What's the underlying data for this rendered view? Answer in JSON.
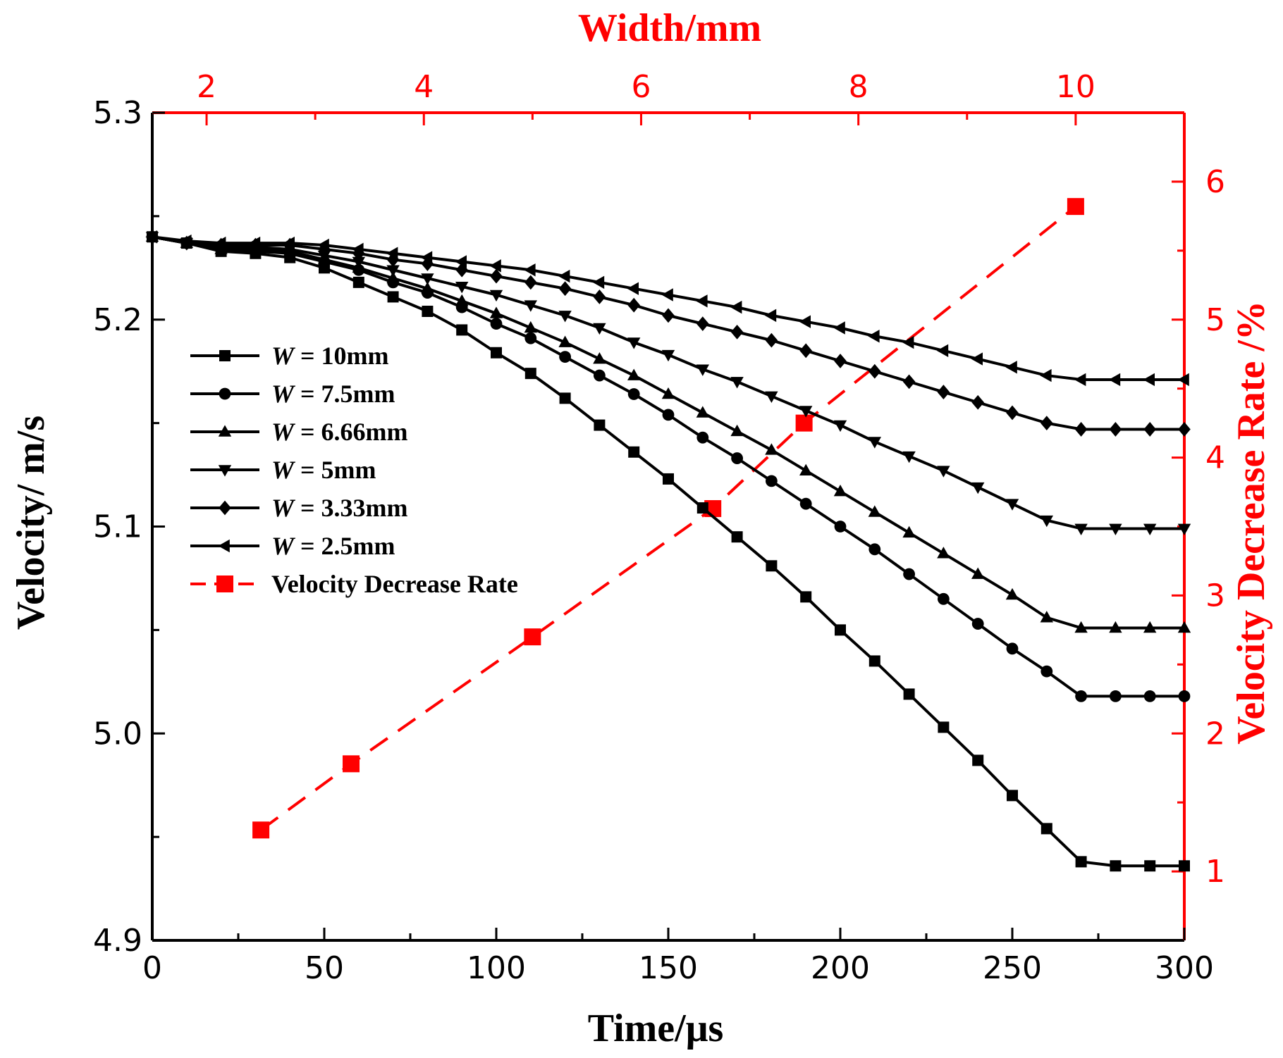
{
  "chart_data": {
    "type": "line",
    "xlabel": "Time/μs",
    "ylabel": "Velocity/ m/s",
    "x2label": "Width/mm",
    "y2label": "Velocity Decrease Rate /%",
    "xlim": [
      0,
      300
    ],
    "ylim": [
      4.9,
      5.3
    ],
    "x2lim": [
      1.5,
      11.0
    ],
    "y2lim": [
      0.5,
      6.5
    ],
    "xticks": [
      "0",
      "50",
      "100",
      "150",
      "200",
      "250",
      "300"
    ],
    "yticks": [
      "4.9",
      "5.0",
      "5.1",
      "5.2",
      "5.3"
    ],
    "x2ticks": [
      "2",
      "4",
      "6",
      "8",
      "10"
    ],
    "y2ticks": [
      "1",
      "2",
      "3",
      "4",
      "5",
      "6"
    ],
    "x": [
      0,
      10,
      20,
      30,
      40,
      50,
      60,
      70,
      80,
      90,
      100,
      110,
      120,
      130,
      140,
      150,
      160,
      170,
      180,
      190,
      200,
      210,
      220,
      230,
      240,
      250,
      260,
      270,
      280,
      290,
      300
    ],
    "series": [
      {
        "name": "W = 10mm",
        "prefix": "W",
        "suffix": " = 10mm",
        "marker": "square",
        "values": [
          5.24,
          5.237,
          5.233,
          5.232,
          5.23,
          5.225,
          5.218,
          5.211,
          5.204,
          5.195,
          5.184,
          5.174,
          5.162,
          5.149,
          5.136,
          5.123,
          5.109,
          5.095,
          5.081,
          5.066,
          5.05,
          5.035,
          5.019,
          5.003,
          4.987,
          4.97,
          4.954,
          4.938,
          4.936,
          4.936,
          4.936
        ]
      },
      {
        "name": "W = 7.5mm",
        "prefix": "W",
        "suffix": " = 7.5mm",
        "marker": "circle",
        "values": [
          5.24,
          5.237,
          5.234,
          5.233,
          5.232,
          5.228,
          5.224,
          5.218,
          5.213,
          5.206,
          5.198,
          5.191,
          5.182,
          5.173,
          5.164,
          5.154,
          5.143,
          5.133,
          5.122,
          5.111,
          5.1,
          5.089,
          5.077,
          5.065,
          5.053,
          5.041,
          5.03,
          5.018,
          5.018,
          5.018,
          5.018
        ]
      },
      {
        "name": "W = 6.66mm",
        "prefix": "W",
        "suffix": " = 6.66mm",
        "marker": "triangle-up",
        "values": [
          5.24,
          5.237,
          5.234,
          5.234,
          5.233,
          5.229,
          5.225,
          5.22,
          5.215,
          5.209,
          5.203,
          5.196,
          5.189,
          5.181,
          5.173,
          5.164,
          5.155,
          5.146,
          5.137,
          5.127,
          5.117,
          5.107,
          5.097,
          5.087,
          5.077,
          5.067,
          5.056,
          5.051,
          5.051,
          5.051,
          5.051
        ]
      },
      {
        "name": "W = 5mm",
        "prefix": "W",
        "suffix": " = 5mm",
        "marker": "triangle-down",
        "values": [
          5.24,
          5.237,
          5.235,
          5.235,
          5.234,
          5.231,
          5.228,
          5.224,
          5.22,
          5.216,
          5.212,
          5.207,
          5.202,
          5.196,
          5.189,
          5.183,
          5.176,
          5.17,
          5.163,
          5.156,
          5.149,
          5.141,
          5.134,
          5.127,
          5.119,
          5.111,
          5.103,
          5.099,
          5.099,
          5.099,
          5.099
        ]
      },
      {
        "name": "W = 3.33mm",
        "prefix": "W",
        "suffix": " = 3.33mm",
        "marker": "diamond",
        "values": [
          5.24,
          5.237,
          5.236,
          5.236,
          5.236,
          5.234,
          5.232,
          5.229,
          5.227,
          5.224,
          5.221,
          5.218,
          5.215,
          5.211,
          5.207,
          5.202,
          5.198,
          5.194,
          5.19,
          5.185,
          5.18,
          5.175,
          5.17,
          5.165,
          5.16,
          5.155,
          5.15,
          5.147,
          5.147,
          5.147,
          5.147
        ]
      },
      {
        "name": "W = 2.5mm",
        "prefix": "W",
        "suffix": " = 2.5mm",
        "marker": "triangle-left",
        "values": [
          5.24,
          5.238,
          5.237,
          5.237,
          5.237,
          5.236,
          5.234,
          5.232,
          5.23,
          5.228,
          5.226,
          5.224,
          5.221,
          5.218,
          5.215,
          5.212,
          5.209,
          5.206,
          5.202,
          5.199,
          5.196,
          5.192,
          5.189,
          5.185,
          5.181,
          5.177,
          5.173,
          5.171,
          5.171,
          5.171,
          5.171
        ]
      }
    ],
    "secondary_series": {
      "name": "Velocity Decrease Rate",
      "style": "dashed",
      "marker": "square",
      "x_axis": "top",
      "y_axis": "right",
      "width_mm": [
        2.5,
        3.33,
        5.0,
        6.66,
        7.5,
        10.0
      ],
      "values": [
        1.3,
        1.78,
        2.7,
        3.63,
        4.25,
        5.82
      ]
    },
    "colors": {
      "primary": "#000000",
      "secondary": "#ff0000"
    },
    "legend_position": "center-left"
  }
}
